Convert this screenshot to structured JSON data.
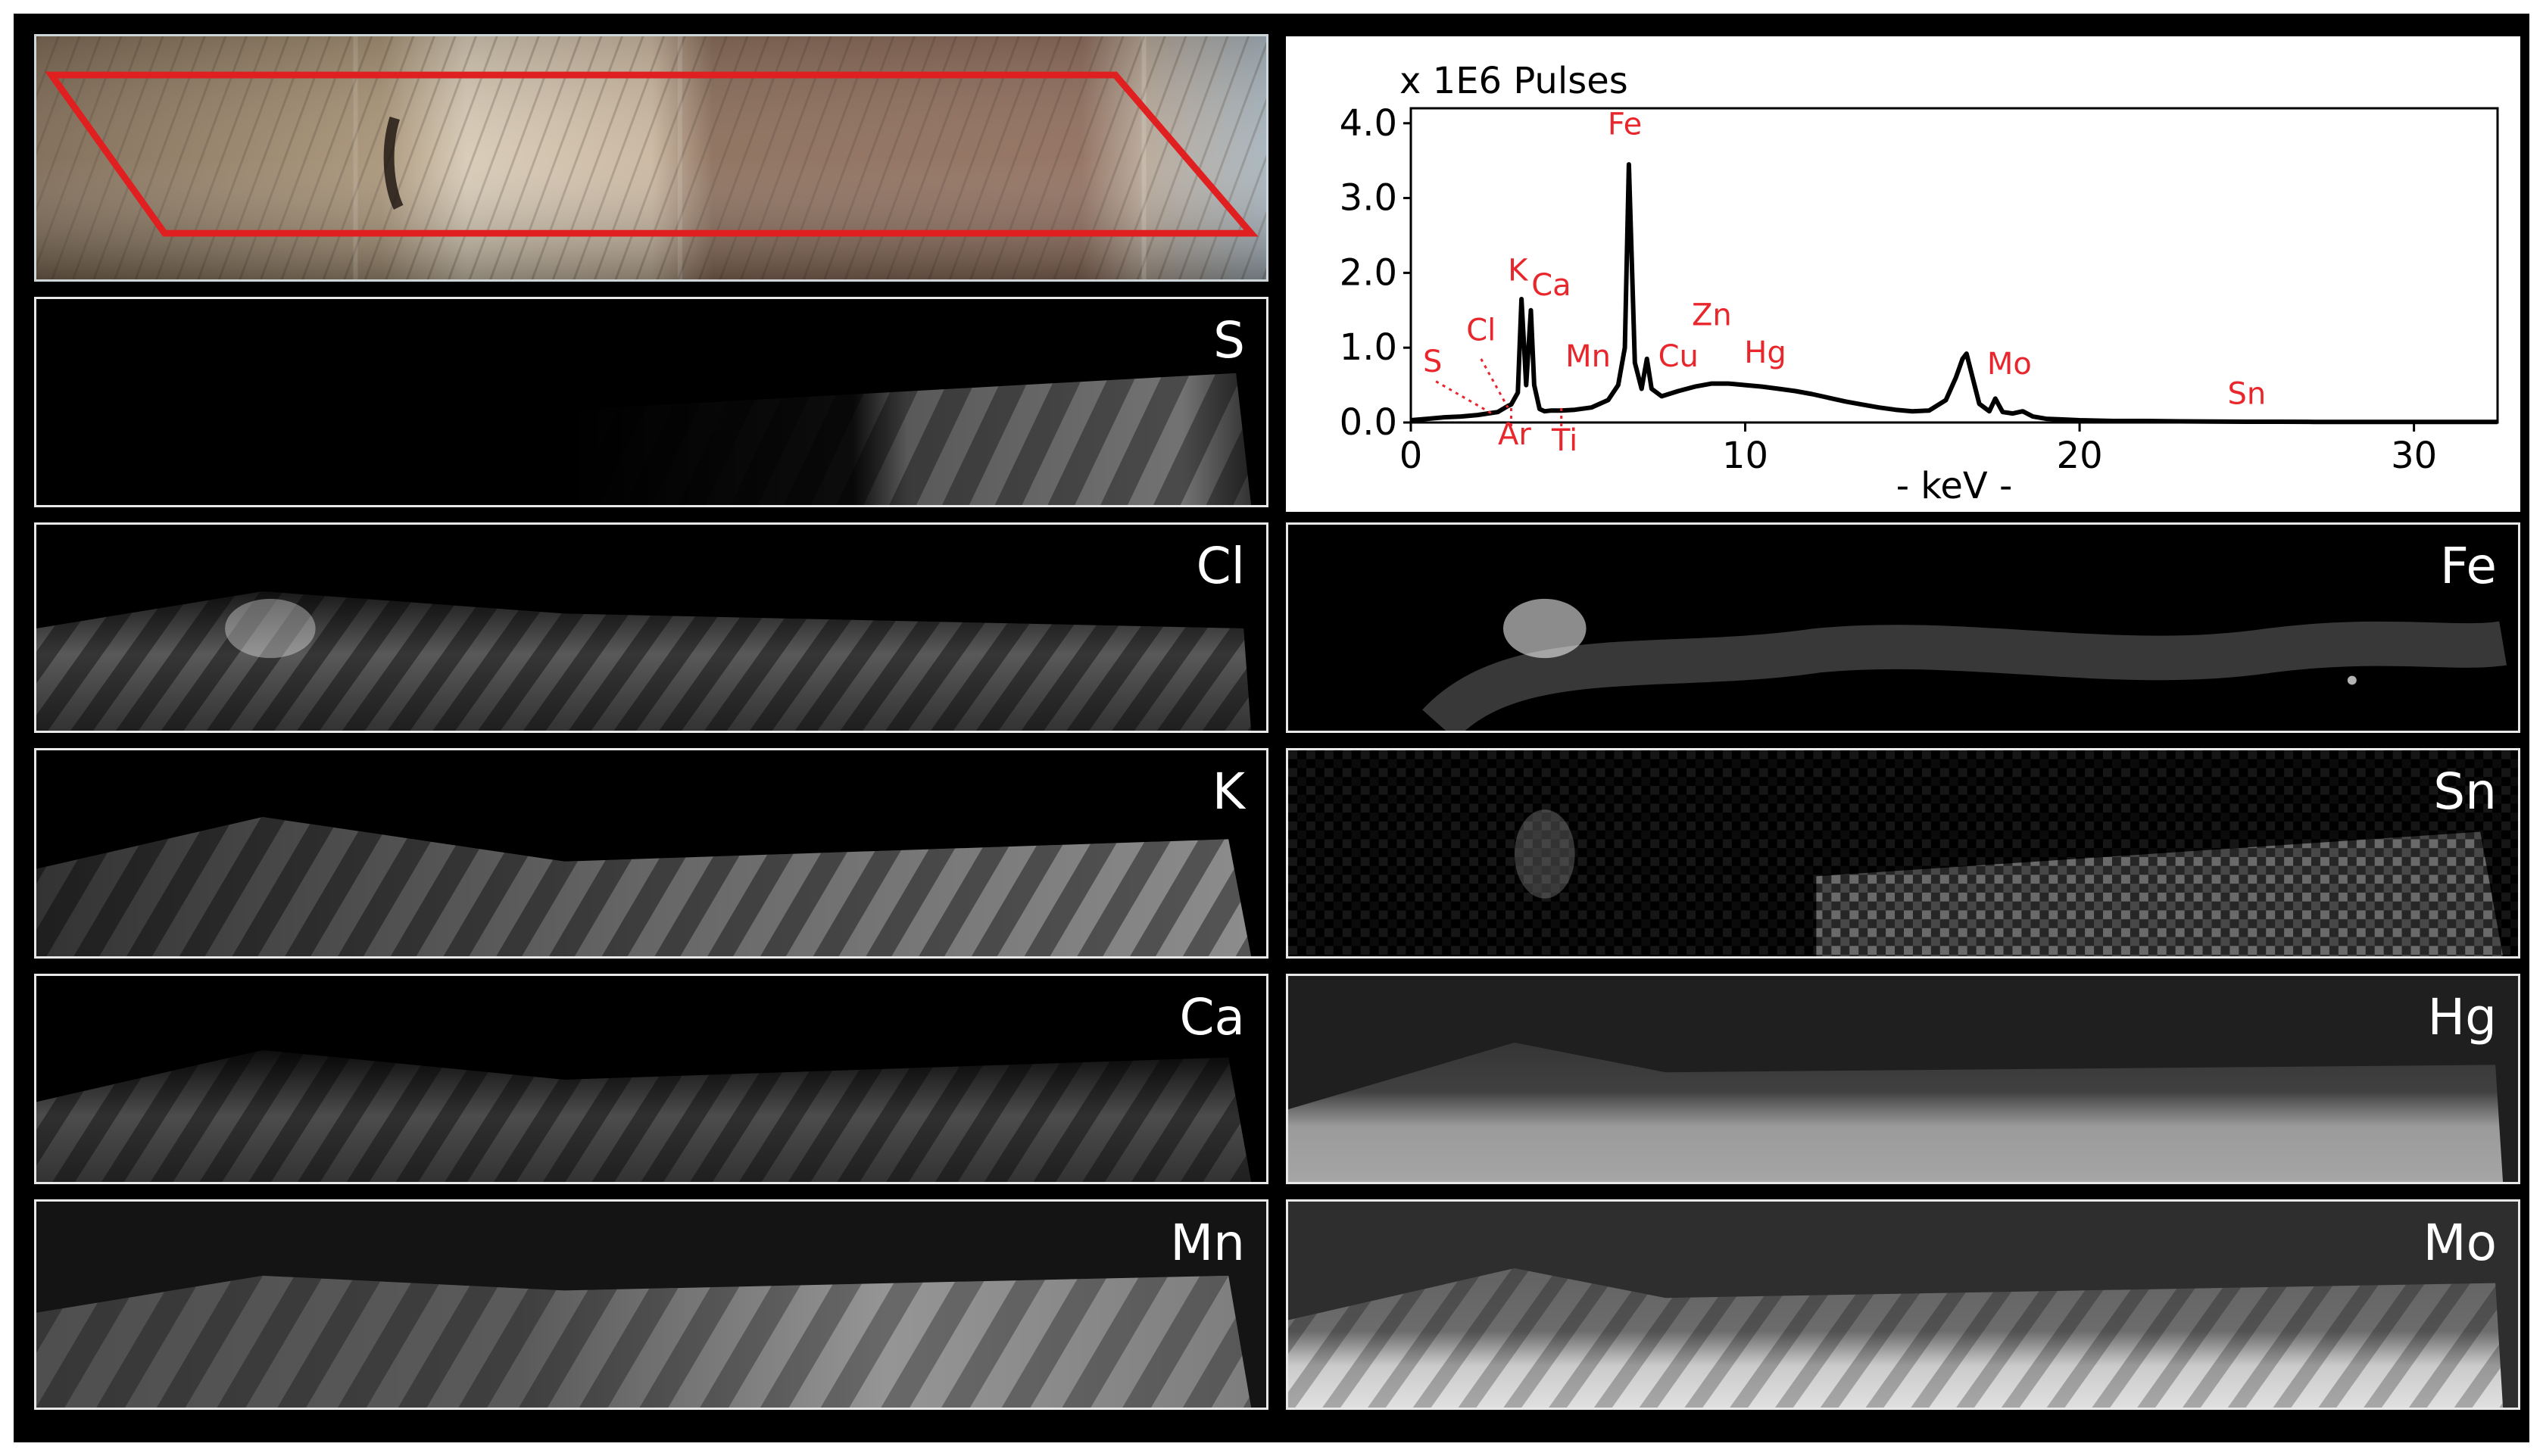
{
  "figure": {
    "colors": {
      "background": "#000000",
      "panel_border": "#e8e8e8",
      "peak_label": "#e8262b",
      "scan_outline": "#e02020",
      "map_glow": "#ffffff"
    },
    "photo": {
      "name": "optical-image-with-scan-area",
      "icon": "sample-photo"
    },
    "maps_left": [
      {
        "element": "S"
      },
      {
        "element": "Cl"
      },
      {
        "element": "K"
      },
      {
        "element": "Ca"
      },
      {
        "element": "Mn"
      }
    ],
    "maps_right": [
      {
        "element": "Fe"
      },
      {
        "element": "Sn"
      },
      {
        "element": "Hg"
      },
      {
        "element": "Mo"
      }
    ]
  },
  "chart_data": {
    "type": "line",
    "title": "x 1E6 Pulses",
    "xlabel": "- keV -",
    "ylabel": "",
    "xlim": [
      0,
      32.5
    ],
    "ylim": [
      0,
      4.2
    ],
    "x_ticks": [
      {
        "value": 0,
        "label": "0"
      },
      {
        "value": 10,
        "label": "10"
      },
      {
        "value": 20,
        "label": "20"
      },
      {
        "value": 30,
        "label": "30"
      }
    ],
    "y_ticks": [
      {
        "value": 0,
        "label": "0.0"
      },
      {
        "value": 1,
        "label": "1.0"
      },
      {
        "value": 2,
        "label": "2.0"
      },
      {
        "value": 3,
        "label": "3.0"
      },
      {
        "value": 4,
        "label": "4.0"
      }
    ],
    "grid": false,
    "series": [
      {
        "x": [
          0,
          0.5,
          1,
          1.5,
          2,
          2.3,
          2.6,
          2.9,
          3.0,
          3.2,
          3.31,
          3.45,
          3.59,
          3.69,
          3.85,
          4.0,
          4.2,
          4.5,
          4.9,
          5.4,
          5.9,
          6.2,
          6.4,
          6.52,
          6.7,
          6.9,
          7.06,
          7.2,
          7.5,
          8.0,
          8.5,
          9.0,
          9.5,
          10.0,
          10.5,
          11.0,
          11.5,
          12.0,
          12.5,
          13.0,
          13.5,
          14.0,
          14.5,
          15.0,
          15.5,
          16.0,
          16.3,
          16.5,
          16.62,
          16.8,
          17.0,
          17.3,
          17.48,
          17.7,
          18.0,
          18.3,
          18.6,
          19.0,
          19.5,
          20,
          21,
          22,
          23,
          24,
          25,
          26,
          27,
          28,
          29,
          30,
          31,
          32.5
        ],
        "y": [
          0.03,
          0.05,
          0.07,
          0.08,
          0.1,
          0.12,
          0.14,
          0.22,
          0.24,
          0.4,
          1.65,
          0.5,
          1.5,
          0.5,
          0.18,
          0.15,
          0.16,
          0.16,
          0.17,
          0.2,
          0.3,
          0.5,
          1.0,
          3.45,
          0.8,
          0.45,
          0.85,
          0.45,
          0.35,
          0.42,
          0.48,
          0.52,
          0.52,
          0.5,
          0.48,
          0.45,
          0.42,
          0.38,
          0.33,
          0.28,
          0.24,
          0.2,
          0.17,
          0.15,
          0.16,
          0.3,
          0.6,
          0.85,
          0.92,
          0.6,
          0.25,
          0.15,
          0.32,
          0.14,
          0.12,
          0.15,
          0.08,
          0.05,
          0.04,
          0.03,
          0.02,
          0.02,
          0.015,
          0.012,
          0.01,
          0.01,
          0.008,
          0.008,
          0.008,
          0.008,
          0.008,
          0.008
        ]
      }
    ],
    "peak_labels": [
      {
        "text": "Fe",
        "x": 6.4,
        "y": 3.85,
        "anchor_x": 6.4,
        "anchor_y": 3.85
      },
      {
        "text": "K",
        "x": 3.2,
        "y": 1.9,
        "anchor_x": 3.2,
        "anchor_y": 1.9
      },
      {
        "text": "Ca",
        "x": 4.2,
        "y": 1.7,
        "anchor_x": 4.2,
        "anchor_y": 1.7
      },
      {
        "text": "Zn",
        "x": 9.0,
        "y": 1.3,
        "anchor_x": 9.0,
        "anchor_y": 1.3
      },
      {
        "text": "Cu",
        "x": 8.0,
        "y": 0.75,
        "anchor_x": 8.0,
        "anchor_y": 0.75
      },
      {
        "text": "Hg",
        "x": 10.6,
        "y": 0.8,
        "anchor_x": 10.6,
        "anchor_y": 0.8
      },
      {
        "text": "Mn",
        "x": 5.3,
        "y": 0.75,
        "anchor_x": 5.3,
        "anchor_y": 0.75
      },
      {
        "text": "Mo",
        "x": 17.9,
        "y": 0.65,
        "anchor_x": 17.9,
        "anchor_y": 0.65
      },
      {
        "text": "Cl",
        "x": 2.1,
        "y": 1.1,
        "anchor_x": 2.1,
        "anchor_y": 1.1
      },
      {
        "text": "S",
        "x": 0.65,
        "y": 0.68,
        "anchor_x": 0.65,
        "anchor_y": 0.68
      },
      {
        "text": "Sn",
        "x": 25.0,
        "y": 0.25,
        "anchor_x": 25.0,
        "anchor_y": 0.25
      },
      {
        "text": "Ar",
        "x": 3.1,
        "y": -0.72,
        "anchor_x": 3.1,
        "anchor_y": -0.72
      },
      {
        "text": "Ti",
        "x": 4.6,
        "y": -0.92,
        "anchor_x": 4.6,
        "anchor_y": -0.92
      }
    ]
  }
}
